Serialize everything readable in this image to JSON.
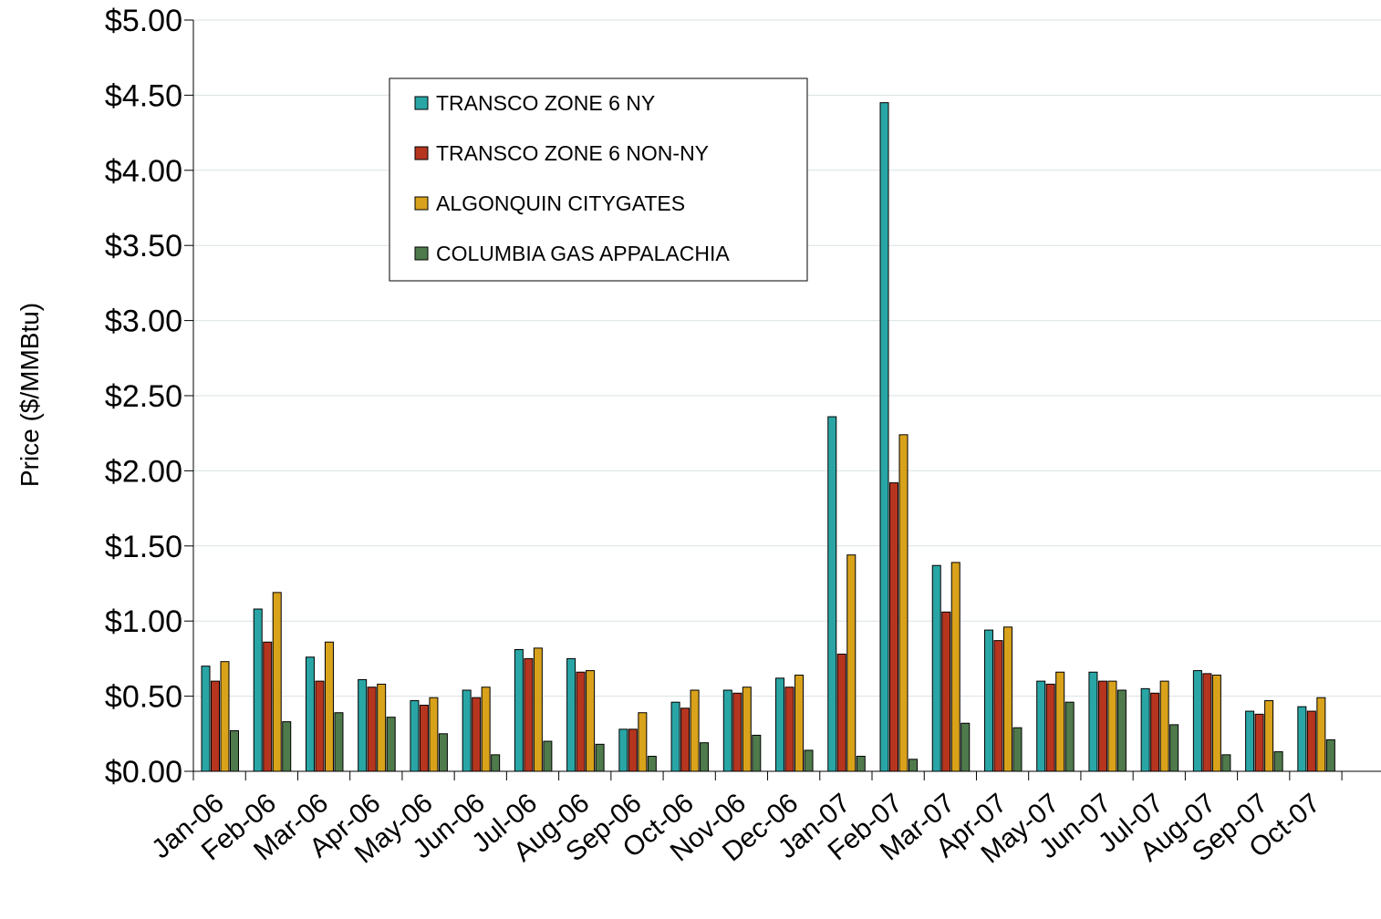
{
  "chart_data": {
    "type": "bar",
    "title": "",
    "xlabel": "",
    "ylabel": "Price  ($/MMBtu)",
    "ylim": [
      0,
      5
    ],
    "ytick_step": 0.5,
    "ytick_format": "currency-2dp",
    "grid": "horizontal",
    "legend_position": "top-center",
    "categories": [
      "Jan-06",
      "Feb-06",
      "Mar-06",
      "Apr-06",
      "May-06",
      "Jun-06",
      "Jul-06",
      "Aug-06",
      "Sep-06",
      "Oct-06",
      "Nov-06",
      "Dec-06",
      "Jan-07",
      "Feb-07",
      "Mar-07",
      "Apr-07",
      "May-07",
      "Jun-07",
      "Jul-07",
      "Aug-07",
      "Sep-07",
      "Oct-07"
    ],
    "series": [
      {
        "name": "TRANSCO ZONE 6 NY",
        "color": "#2aa5a5",
        "values": [
          0.7,
          1.08,
          0.76,
          0.61,
          0.47,
          0.54,
          0.81,
          0.75,
          0.28,
          0.46,
          0.54,
          0.62,
          2.36,
          4.45,
          1.37,
          0.94,
          0.6,
          0.66,
          0.55,
          0.67,
          0.4,
          0.43
        ]
      },
      {
        "name": "TRANSCO ZONE 6 NON-NY",
        "color": "#b5351f",
        "values": [
          0.6,
          0.86,
          0.6,
          0.56,
          0.44,
          0.49,
          0.75,
          0.66,
          0.28,
          0.42,
          0.52,
          0.56,
          0.78,
          1.92,
          1.06,
          0.87,
          0.58,
          0.6,
          0.52,
          0.65,
          0.38,
          0.4
        ]
      },
      {
        "name": "ALGONQUIN CITYGATES",
        "color": "#d9a21b",
        "values": [
          0.73,
          1.19,
          0.86,
          0.58,
          0.49,
          0.56,
          0.82,
          0.67,
          0.39,
          0.54,
          0.56,
          0.64,
          1.44,
          2.24,
          1.39,
          0.96,
          0.66,
          0.6,
          0.6,
          0.64,
          0.47,
          0.49
        ]
      },
      {
        "name": "COLUMBIA GAS APPALACHIA",
        "color": "#4f7a4c",
        "values": [
          0.27,
          0.33,
          0.39,
          0.36,
          0.25,
          0.11,
          0.2,
          0.18,
          0.1,
          0.19,
          0.24,
          0.14,
          0.1,
          0.08,
          0.32,
          0.29,
          0.46,
          0.54,
          0.31,
          0.11,
          0.13,
          0.21
        ]
      }
    ]
  }
}
